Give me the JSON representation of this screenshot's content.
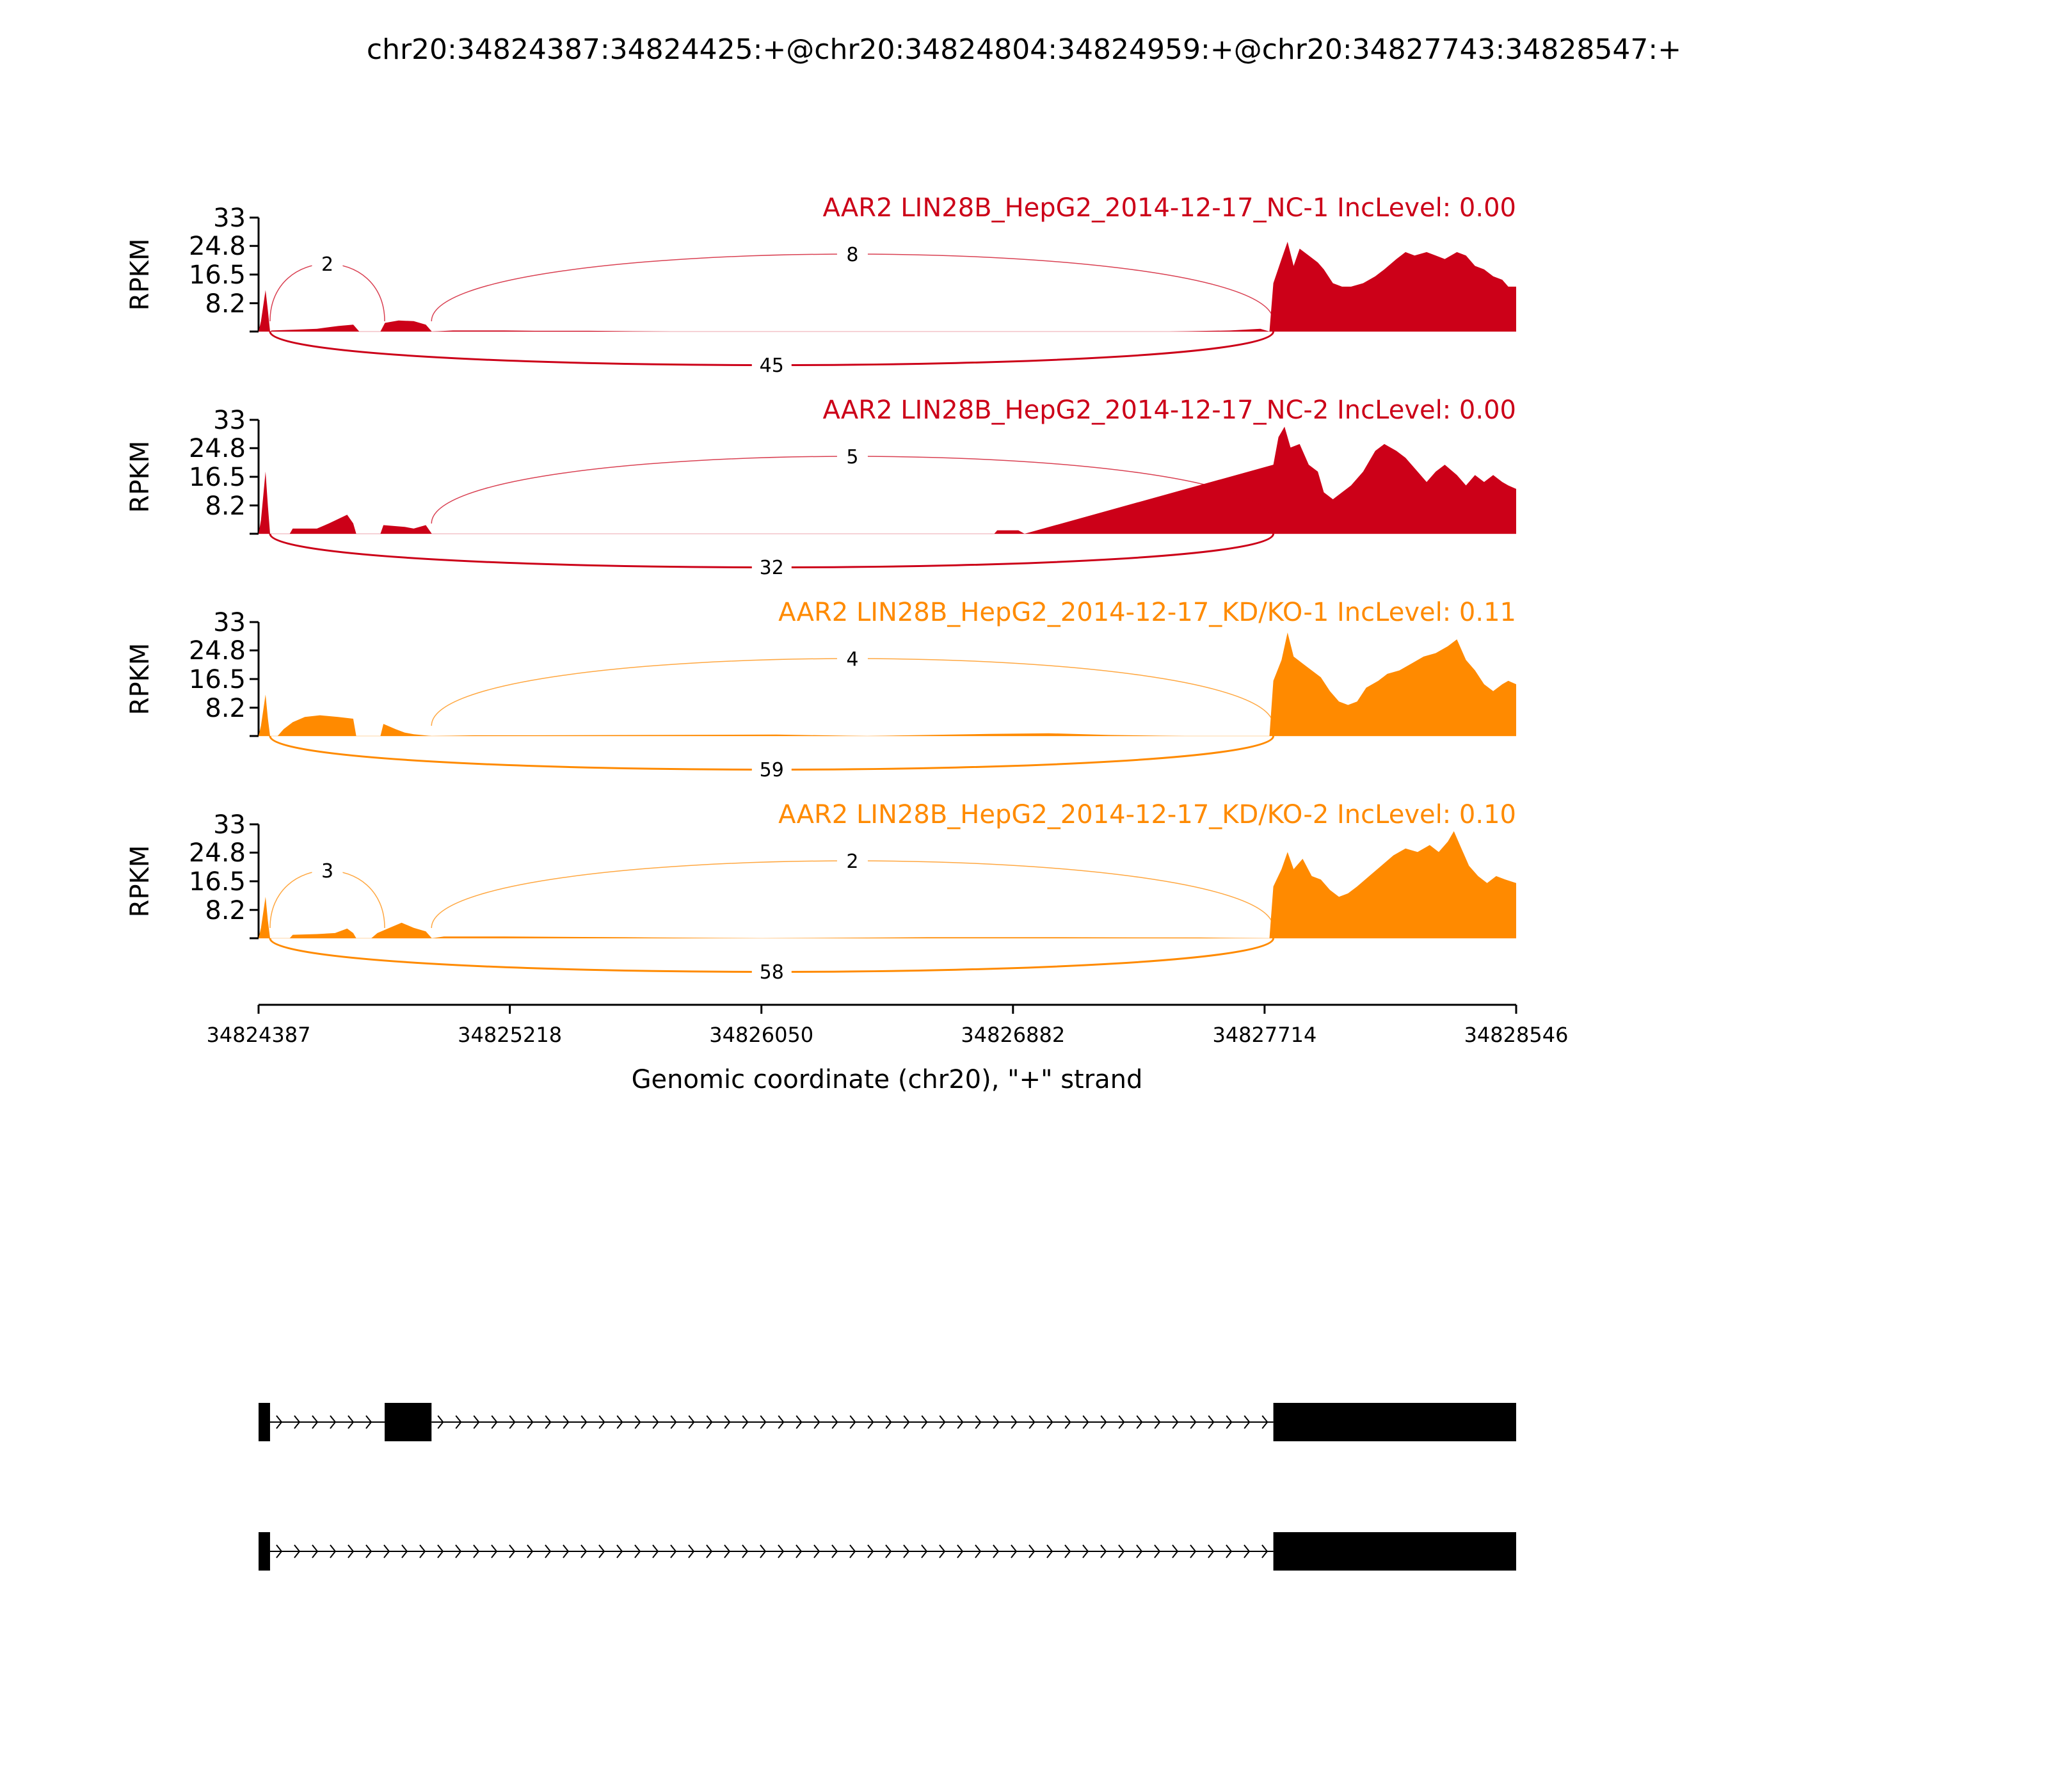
{
  "chart_data": {
    "type": "area",
    "title": "chr20:34824387:34824425:+@chr20:34824804:34824959:+@chr20:34827743:34828547:+",
    "xlabel": "Genomic coordinate (chr20), \"+\" strand",
    "ylabel": "RPKM",
    "xlim": [
      34824387,
      34828546
    ],
    "ylim": [
      0,
      33
    ],
    "x_ticks": [
      "34824387",
      "34825218",
      "34826050",
      "34826882",
      "34827714",
      "34828546"
    ],
    "y_ticks": [
      "33",
      "24.8",
      "16.5",
      "8.2"
    ],
    "colors": {
      "NC": "#cc0018",
      "KD": "#ff8a00",
      "gene": "#000000"
    },
    "series": [
      {
        "name": "AAR2 LIN28B_HepG2_2014-12-17_NC-1 IncLevel: 0.00",
        "group": "NC",
        "coverage": [
          [
            34824387,
            0
          ],
          [
            34824395,
            3
          ],
          [
            34824410,
            12
          ],
          [
            34824418,
            6
          ],
          [
            34824425,
            0
          ],
          [
            34824430,
            0.3
          ],
          [
            34824500,
            0.5
          ],
          [
            34824580,
            0.8
          ],
          [
            34824650,
            1.6
          ],
          [
            34824700,
            2.0
          ],
          [
            34824720,
            0
          ],
          [
            34824790,
            0
          ],
          [
            34824805,
            2.5
          ],
          [
            34824850,
            3.2
          ],
          [
            34824900,
            3.0
          ],
          [
            34824940,
            2.0
          ],
          [
            34824960,
            0
          ],
          [
            34825030,
            0.3
          ],
          [
            34825200,
            0.3
          ],
          [
            34825300,
            0.2
          ],
          [
            34825480,
            0.2
          ],
          [
            34825750,
            0
          ],
          [
            34827400,
            0
          ],
          [
            34827600,
            0.3
          ],
          [
            34827700,
            0.8
          ],
          [
            34827730,
            0
          ],
          [
            34827743,
            14
          ],
          [
            34827770,
            21
          ],
          [
            34827790,
            26
          ],
          [
            34827810,
            19
          ],
          [
            34827830,
            24
          ],
          [
            34827860,
            22
          ],
          [
            34827890,
            20
          ],
          [
            34827910,
            18
          ],
          [
            34827940,
            14
          ],
          [
            34827970,
            13
          ],
          [
            34828000,
            13
          ],
          [
            34828040,
            14
          ],
          [
            34828080,
            16
          ],
          [
            34828110,
            18
          ],
          [
            34828150,
            21
          ],
          [
            34828180,
            23
          ],
          [
            34828210,
            22
          ],
          [
            34828250,
            23
          ],
          [
            34828280,
            22
          ],
          [
            34828310,
            21
          ],
          [
            34828350,
            23
          ],
          [
            34828380,
            22
          ],
          [
            34828410,
            19
          ],
          [
            34828440,
            18
          ],
          [
            34828470,
            16
          ],
          [
            34828500,
            15
          ],
          [
            34828520,
            13
          ],
          [
            34828546,
            13
          ]
        ],
        "junctions": [
          {
            "count": 2,
            "from": 34824425,
            "to": 34824804,
            "side": "above"
          },
          {
            "count": 8,
            "from": 34824959,
            "to": 34827743,
            "side": "above"
          },
          {
            "count": 45,
            "from": 34824425,
            "to": 34827743,
            "side": "below"
          }
        ]
      },
      {
        "name": "AAR2 LIN28B_HepG2_2014-12-17_NC-2 IncLevel: 0.00",
        "group": "NC",
        "coverage": [
          [
            34824387,
            0
          ],
          [
            34824395,
            4
          ],
          [
            34824410,
            18
          ],
          [
            34824418,
            8
          ],
          [
            34824425,
            0
          ],
          [
            34824490,
            0
          ],
          [
            34824500,
            1.5
          ],
          [
            34824580,
            1.5
          ],
          [
            34824620,
            3
          ],
          [
            34824680,
            5.5
          ],
          [
            34824700,
            3
          ],
          [
            34824710,
            0
          ],
          [
            34824790,
            0
          ],
          [
            34824800,
            2.5
          ],
          [
            34824870,
            2.0
          ],
          [
            34824900,
            1.5
          ],
          [
            34824940,
            2.5
          ],
          [
            34824960,
            0
          ],
          [
            34826820,
            0
          ],
          [
            34826830,
            1
          ],
          [
            34826900,
            1
          ],
          [
            34826920,
            0
          ],
          [
            34827743,
            20
          ],
          [
            34827760,
            28
          ],
          [
            34827780,
            31
          ],
          [
            34827800,
            25
          ],
          [
            34827830,
            26
          ],
          [
            34827860,
            20
          ],
          [
            34827890,
            18
          ],
          [
            34827910,
            12
          ],
          [
            34827940,
            10
          ],
          [
            34827970,
            12
          ],
          [
            34828000,
            14
          ],
          [
            34828040,
            18
          ],
          [
            34828080,
            24
          ],
          [
            34828110,
            26
          ],
          [
            34828150,
            24
          ],
          [
            34828180,
            22
          ],
          [
            34828210,
            19
          ],
          [
            34828250,
            15
          ],
          [
            34828280,
            18
          ],
          [
            34828310,
            20
          ],
          [
            34828350,
            17
          ],
          [
            34828380,
            14
          ],
          [
            34828410,
            17
          ],
          [
            34828440,
            15
          ],
          [
            34828470,
            17
          ],
          [
            34828500,
            15
          ],
          [
            34828520,
            14
          ],
          [
            34828546,
            13
          ]
        ],
        "junctions": [
          {
            "count": 5,
            "from": 34824959,
            "to": 34827743,
            "side": "above"
          },
          {
            "count": 32,
            "from": 34824425,
            "to": 34827743,
            "side": "below"
          }
        ]
      },
      {
        "name": "AAR2 LIN28B_HepG2_2014-12-17_KD/KO-1 IncLevel: 0.11",
        "group": "KD",
        "coverage": [
          [
            34824387,
            0
          ],
          [
            34824395,
            3
          ],
          [
            34824410,
            12
          ],
          [
            34824418,
            5
          ],
          [
            34824425,
            0
          ],
          [
            34824450,
            0
          ],
          [
            34824470,
            2
          ],
          [
            34824500,
            4
          ],
          [
            34824540,
            5.5
          ],
          [
            34824590,
            6
          ],
          [
            34824650,
            5.5
          ],
          [
            34824700,
            5
          ],
          [
            34824710,
            0
          ],
          [
            34824790,
            0
          ],
          [
            34824800,
            3.5
          ],
          [
            34824840,
            2
          ],
          [
            34824870,
            1
          ],
          [
            34824900,
            0.5
          ],
          [
            34824960,
            0
          ],
          [
            34825100,
            0.2
          ],
          [
            34825300,
            0.2
          ],
          [
            34825700,
            0.3
          ],
          [
            34826100,
            0.4
          ],
          [
            34826400,
            0
          ],
          [
            34826800,
            0.6
          ],
          [
            34827000,
            0.8
          ],
          [
            34827200,
            0.3
          ],
          [
            34827450,
            0
          ],
          [
            34827730,
            0
          ],
          [
            34827743,
            16
          ],
          [
            34827770,
            22
          ],
          [
            34827790,
            30
          ],
          [
            34827810,
            23
          ],
          [
            34827840,
            21
          ],
          [
            34827870,
            19
          ],
          [
            34827900,
            17
          ],
          [
            34827930,
            13
          ],
          [
            34827960,
            10
          ],
          [
            34827990,
            9
          ],
          [
            34828020,
            10
          ],
          [
            34828050,
            14
          ],
          [
            34828090,
            16
          ],
          [
            34828120,
            18
          ],
          [
            34828160,
            19
          ],
          [
            34828200,
            21
          ],
          [
            34828240,
            23
          ],
          [
            34828280,
            24
          ],
          [
            34828320,
            26
          ],
          [
            34828350,
            28
          ],
          [
            34828380,
            22
          ],
          [
            34828410,
            19
          ],
          [
            34828440,
            15
          ],
          [
            34828470,
            13
          ],
          [
            34828500,
            15
          ],
          [
            34828520,
            16
          ],
          [
            34828546,
            15
          ]
        ],
        "junctions": [
          {
            "count": 4,
            "from": 34824959,
            "to": 34827743,
            "side": "above"
          },
          {
            "count": 59,
            "from": 34824425,
            "to": 34827743,
            "side": "below"
          }
        ]
      },
      {
        "name": "AAR2 LIN28B_HepG2_2014-12-17_KD/KO-2 IncLevel: 0.10",
        "group": "KD",
        "coverage": [
          [
            34824387,
            0
          ],
          [
            34824395,
            3
          ],
          [
            34824410,
            12
          ],
          [
            34824418,
            5
          ],
          [
            34824425,
            0
          ],
          [
            34824490,
            0
          ],
          [
            34824500,
            1
          ],
          [
            34824580,
            1.2
          ],
          [
            34824640,
            1.5
          ],
          [
            34824680,
            2.8
          ],
          [
            34824700,
            1.5
          ],
          [
            34824710,
            0
          ],
          [
            34824760,
            0
          ],
          [
            34824780,
            1.5
          ],
          [
            34824820,
            3
          ],
          [
            34824860,
            4.5
          ],
          [
            34824900,
            3
          ],
          [
            34824940,
            2
          ],
          [
            34824960,
            0
          ],
          [
            34825000,
            0.5
          ],
          [
            34825200,
            0.5
          ],
          [
            34825600,
            0.3
          ],
          [
            34826050,
            0
          ],
          [
            34826600,
            0.3
          ],
          [
            34827000,
            0.3
          ],
          [
            34827500,
            0.2
          ],
          [
            34827730,
            0
          ],
          [
            34827743,
            15
          ],
          [
            34827770,
            20
          ],
          [
            34827790,
            25
          ],
          [
            34827810,
            20
          ],
          [
            34827840,
            23
          ],
          [
            34827870,
            18
          ],
          [
            34827900,
            17
          ],
          [
            34827930,
            14
          ],
          [
            34827960,
            12
          ],
          [
            34827990,
            13
          ],
          [
            34828020,
            15
          ],
          [
            34828060,
            18
          ],
          [
            34828100,
            21
          ],
          [
            34828140,
            24
          ],
          [
            34828180,
            26
          ],
          [
            34828220,
            25
          ],
          [
            34828260,
            27
          ],
          [
            34828290,
            25
          ],
          [
            34828320,
            28
          ],
          [
            34828340,
            31
          ],
          [
            34828360,
            27
          ],
          [
            34828390,
            21
          ],
          [
            34828420,
            18
          ],
          [
            34828450,
            16
          ],
          [
            34828480,
            18
          ],
          [
            34828510,
            17
          ],
          [
            34828546,
            16
          ]
        ],
        "junctions": [
          {
            "count": 3,
            "from": 34824425,
            "to": 34824804,
            "side": "above"
          },
          {
            "count": 2,
            "from": 34824959,
            "to": 34827743,
            "side": "above"
          },
          {
            "count": 58,
            "from": 34824425,
            "to": 34827743,
            "side": "below"
          }
        ]
      }
    ],
    "transcripts": [
      {
        "exons": [
          [
            34824387,
            34824425
          ],
          [
            34824804,
            34824959
          ],
          [
            34827743,
            34828546
          ]
        ]
      },
      {
        "exons": [
          [
            34824387,
            34824425
          ],
          [
            34827743,
            34828546
          ]
        ]
      }
    ]
  }
}
